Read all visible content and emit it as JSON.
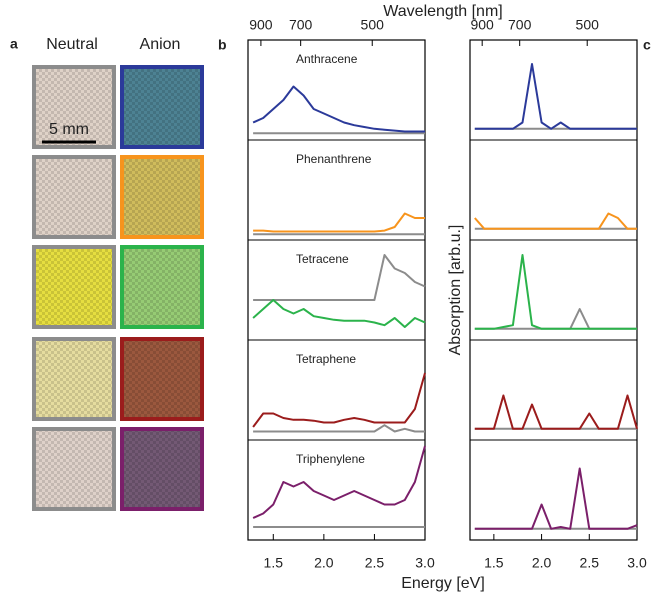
{
  "panel_a": {
    "label": "a",
    "columns": [
      "Neutral",
      "Anion"
    ],
    "scale_bar": "5 mm"
  },
  "chart_data": [
    {
      "type": "line",
      "panel_label": "b",
      "x_label": "Energy [eV]",
      "x2_label": "Wavelength [nm]",
      "xlim": [
        1.25,
        3.0
      ],
      "xticks": [
        1.5,
        {
          "value": 2,
          "label": "2.0"
        },
        2.5,
        {
          "value": 3,
          "label": "3.0"
        }
      ],
      "x2lim": [
        992,
        413
      ],
      "x2ticks": [
        900,
        700,
        500
      ],
      "ylim": [
        0,
        1
      ],
      "x": [
        1.3,
        1.4,
        1.5,
        1.6,
        1.7,
        1.8,
        1.9,
        2.0,
        2.1,
        2.2,
        2.3,
        2.4,
        2.5,
        2.6,
        2.7,
        2.8,
        2.9,
        3.0
      ],
      "subplots": [
        {
          "name": "Anthracene",
          "series": [
            {
              "color": "#8c8c8c",
              "values": [
                0.03,
                0.03,
                0.03,
                0.03,
                0.03,
                0.03,
                0.03,
                0.03,
                0.03,
                0.03,
                0.03,
                0.03,
                0.03,
                0.03,
                0.03,
                0.03,
                0.03,
                0.03
              ]
            },
            {
              "color": "#2b3a9a",
              "values": [
                0.15,
                0.2,
                0.3,
                0.4,
                0.55,
                0.45,
                0.3,
                0.25,
                0.2,
                0.15,
                0.12,
                0.1,
                0.08,
                0.07,
                0.06,
                0.05,
                0.05,
                0.05
              ]
            }
          ]
        },
        {
          "name": "Phenanthrene",
          "series": [
            {
              "color": "#8c8c8c",
              "values": [
                0.02,
                0.02,
                0.02,
                0.02,
                0.02,
                0.02,
                0.02,
                0.02,
                0.02,
                0.02,
                0.02,
                0.02,
                0.02,
                0.02,
                0.02,
                0.02,
                0.02,
                0.02
              ]
            },
            {
              "color": "#f7941d",
              "values": [
                0.06,
                0.06,
                0.05,
                0.05,
                0.05,
                0.05,
                0.05,
                0.05,
                0.05,
                0.05,
                0.05,
                0.05,
                0.05,
                0.06,
                0.1,
                0.25,
                0.2,
                0.2
              ]
            }
          ]
        },
        {
          "name": "Tetracene",
          "series": [
            {
              "color": "#8c8c8c",
              "values": [
                0.4,
                0.4,
                0.4,
                0.4,
                0.4,
                0.4,
                0.4,
                0.4,
                0.4,
                0.4,
                0.4,
                0.4,
                0.4,
                0.9,
                0.75,
                0.7,
                0.6,
                0.55
              ]
            },
            {
              "color": "#2bb34b",
              "values": [
                0.2,
                0.3,
                0.4,
                0.3,
                0.25,
                0.3,
                0.22,
                0.2,
                0.18,
                0.17,
                0.17,
                0.17,
                0.15,
                0.12,
                0.2,
                0.1,
                0.2,
                0.15
              ]
            }
          ]
        },
        {
          "name": "Tetraphene",
          "series": [
            {
              "color": "#8c8c8c",
              "values": [
                0.05,
                0.05,
                0.05,
                0.05,
                0.05,
                0.05,
                0.05,
                0.05,
                0.05,
                0.05,
                0.05,
                0.05,
                0.05,
                0.12,
                0.05,
                0.08,
                0.05,
                0.05
              ]
            },
            {
              "color": "#9b1c1c",
              "values": [
                0.1,
                0.25,
                0.25,
                0.2,
                0.18,
                0.18,
                0.17,
                0.15,
                0.15,
                0.18,
                0.2,
                0.18,
                0.15,
                0.15,
                0.15,
                0.15,
                0.3,
                0.7
              ]
            }
          ]
        },
        {
          "name": "Triphenylene",
          "series": [
            {
              "color": "#8c8c8c",
              "values": [
                0.1,
                0.1,
                0.1,
                0.1,
                0.1,
                0.1,
                0.1,
                0.1,
                0.1,
                0.1,
                0.1,
                0.1,
                0.1,
                0.1,
                0.1,
                0.1,
                0.1,
                0.1
              ]
            },
            {
              "color": "#7b1f6a",
              "values": [
                0.2,
                0.25,
                0.35,
                0.6,
                0.55,
                0.6,
                0.5,
                0.45,
                0.4,
                0.45,
                0.5,
                0.45,
                0.4,
                0.35,
                0.35,
                0.4,
                0.6,
                1.0
              ]
            }
          ]
        }
      ]
    },
    {
      "type": "line",
      "panel_label": "c",
      "y_label": "Absorption [arb.u.]",
      "xlim": [
        1.25,
        3.0
      ],
      "xticks": [
        1.5,
        {
          "value": 2,
          "label": "2.0"
        },
        2.5,
        {
          "value": 3,
          "label": "3.0"
        }
      ],
      "x2lim": [
        992,
        413
      ],
      "x2ticks": [
        900,
        700,
        500
      ],
      "ylim": [
        0,
        1
      ],
      "x": [
        1.3,
        1.4,
        1.5,
        1.6,
        1.7,
        1.8,
        1.9,
        2.0,
        2.1,
        2.2,
        2.3,
        2.4,
        2.5,
        2.6,
        2.7,
        2.8,
        2.9,
        3.0
      ],
      "subplots": [
        {
          "series": [
            {
              "color": "#8c8c8c",
              "values": [
                0.08,
                0.08,
                0.08,
                0.08,
                0.08,
                0.08,
                0.08,
                0.08,
                0.08,
                0.08,
                0.08,
                0.08,
                0.08,
                0.08,
                0.08,
                0.08,
                0.08,
                0.08
              ]
            },
            {
              "color": "#2b3a9a",
              "values": [
                0.08,
                0.08,
                0.08,
                0.08,
                0.08,
                0.15,
                0.8,
                0.15,
                0.08,
                0.15,
                0.08,
                0.08,
                0.08,
                0.08,
                0.08,
                0.08,
                0.08,
                0.08
              ]
            }
          ]
        },
        {
          "series": [
            {
              "color": "#8c8c8c",
              "values": [
                0.08,
                0.08,
                0.08,
                0.08,
                0.08,
                0.08,
                0.08,
                0.08,
                0.08,
                0.08,
                0.08,
                0.08,
                0.08,
                0.08,
                0.08,
                0.08,
                0.08,
                0.08
              ]
            },
            {
              "color": "#f7941d",
              "values": [
                0.2,
                0.08,
                0.08,
                0.08,
                0.08,
                0.08,
                0.08,
                0.08,
                0.08,
                0.08,
                0.08,
                0.08,
                0.08,
                0.08,
                0.25,
                0.2,
                0.08,
                0.08
              ]
            }
          ]
        },
        {
          "series": [
            {
              "color": "#8c8c8c",
              "values": [
                0.08,
                0.08,
                0.08,
                0.08,
                0.08,
                0.08,
                0.08,
                0.08,
                0.08,
                0.08,
                0.08,
                0.3,
                0.08,
                0.08,
                0.08,
                0.08,
                0.08,
                0.08
              ]
            },
            {
              "color": "#2bb34b",
              "values": [
                0.08,
                0.08,
                0.08,
                0.1,
                0.12,
                0.9,
                0.12,
                0.08,
                0.08,
                0.08,
                0.08,
                0.08,
                0.08,
                0.08,
                0.08,
                0.08,
                0.08,
                0.08
              ]
            }
          ]
        },
        {
          "series": [
            {
              "color": "#8c8c8c",
              "values": [
                0.08,
                0.08,
                0.08,
                0.08,
                0.08,
                0.08,
                0.08,
                0.08,
                0.08,
                0.08,
                0.08,
                0.08,
                0.08,
                0.08,
                0.08,
                0.08,
                0.08,
                0.08
              ]
            },
            {
              "color": "#9b1c1c",
              "values": [
                0.08,
                0.08,
                0.08,
                0.45,
                0.08,
                0.08,
                0.35,
                0.08,
                0.08,
                0.08,
                0.08,
                0.08,
                0.25,
                0.08,
                0.08,
                0.08,
                0.45,
                0.08
              ]
            }
          ]
        },
        {
          "series": [
            {
              "color": "#8c8c8c",
              "values": [
                0.08,
                0.08,
                0.08,
                0.08,
                0.08,
                0.08,
                0.08,
                0.08,
                0.08,
                0.08,
                0.08,
                0.08,
                0.08,
                0.08,
                0.08,
                0.08,
                0.08,
                0.08
              ]
            },
            {
              "color": "#7b1f6a",
              "values": [
                0.08,
                0.08,
                0.08,
                0.08,
                0.08,
                0.08,
                0.08,
                0.35,
                0.08,
                0.1,
                0.08,
                0.75,
                0.08,
                0.08,
                0.08,
                0.08,
                0.08,
                0.12
              ]
            }
          ]
        }
      ]
    }
  ]
}
